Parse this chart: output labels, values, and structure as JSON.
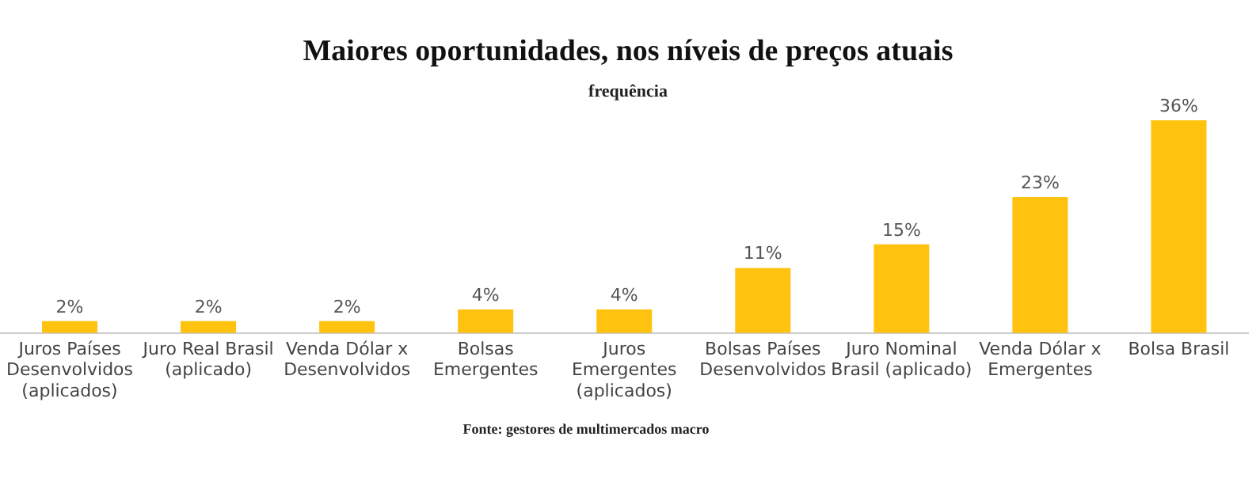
{
  "chart_data": {
    "type": "bar",
    "title": "Maiores oportunidades, nos níveis de preços atuais",
    "subtitle": "frequência",
    "categories": [
      "Juros Países\nDesenvolvidos\n(aplicados)",
      "Juro Real Brasil\n(aplicado)",
      "Venda Dólar x\nDesenvolvidos",
      "Bolsas\nEmergentes",
      "Juros\nEmergentes\n(aplicados)",
      "Bolsas Países\nDesenvolvidos",
      "Juro Nominal\nBrasil (aplicado)",
      "Venda Dólar x\nEmergentes",
      "Bolsa Brasil"
    ],
    "values": [
      2,
      2,
      2,
      4,
      4,
      11,
      15,
      23,
      36
    ],
    "value_labels": [
      "2%",
      "2%",
      "2%",
      "4%",
      "4%",
      "11%",
      "15%",
      "23%",
      "36%"
    ],
    "color": "#ffc20e",
    "annotations": [
      "Fonte: gestores de multimercados macro"
    ]
  }
}
